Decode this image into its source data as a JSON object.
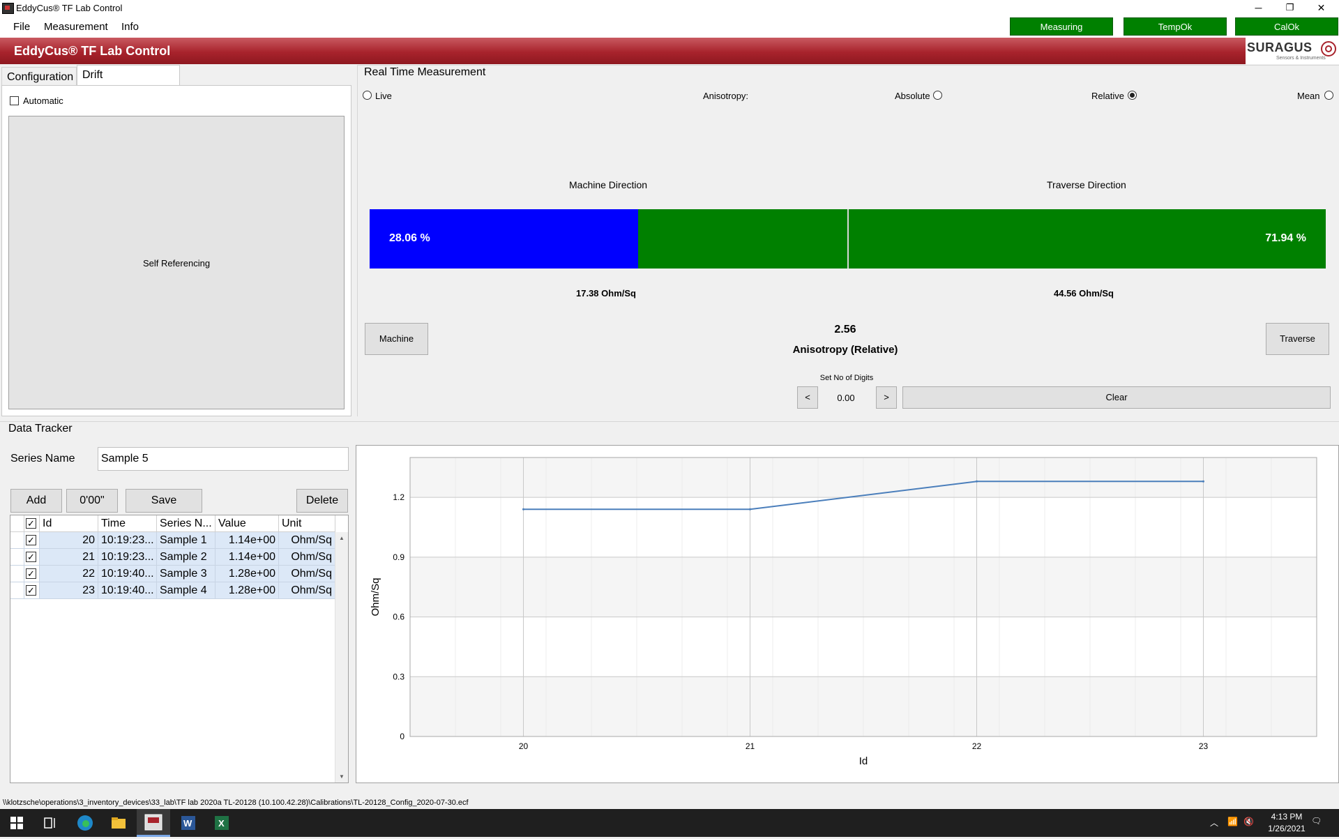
{
  "window": {
    "title": "EddyCus® TF Lab Control",
    "minimize": "─",
    "restore": "❐",
    "close": "✕"
  },
  "menu": {
    "items": [
      "File",
      "Measurement",
      "Info"
    ]
  },
  "status_buttons": {
    "measuring": "Measuring",
    "tempok": "TempOk",
    "calok": "CalOk",
    "color": "#008000"
  },
  "banner": {
    "title": "EddyCus® TF Lab Control",
    "logo_name": "SURAGUS",
    "logo_tagline": "Sensors & Instruments",
    "color": "#a8232c"
  },
  "tabs": {
    "configuration": "Configuration",
    "drift": "Drift Compensation"
  },
  "drift": {
    "automatic_label": "Automatic",
    "automatic_checked": false,
    "self_referencing": "Self Referencing"
  },
  "realtime": {
    "title": "Real Time Measurement",
    "live_label": "Live",
    "anisotropy_label": "Anisotropy:",
    "absolute_label": "Absolute",
    "relative_label": "Relative",
    "mean_label": "Mean",
    "selected_mode": "Relative",
    "machine_direction": "Machine Direction",
    "traverse_direction": "Traverse Direction",
    "machine_percent_label": "28.06 %",
    "traverse_percent_label": "71.94 %",
    "machine_fraction": 0.2806,
    "machine_value": "17.38 Ohm/Sq",
    "traverse_value": "44.56 Ohm/Sq",
    "machine_button": "Machine",
    "traverse_button": "Traverse",
    "anisotropy_value": "2.56",
    "anisotropy_caption": "Anisotropy (Relative)",
    "digits_label": "Set No of Digits",
    "digits_dec": "<",
    "digits_value": "0.00",
    "digits_inc": ">",
    "clear_button": "Clear",
    "bar_colors": {
      "machine": "#0000ff",
      "traverse": "#008000"
    }
  },
  "tracker": {
    "title": "Data Tracker",
    "series_label": "Series Name",
    "series_value": "Sample 5",
    "add_button": "Add",
    "timer_button": "0'00\"",
    "save_button": "Save",
    "delete_button": "Delete",
    "columns": [
      "Id",
      "Time",
      "Series N...",
      "Value",
      "Unit"
    ],
    "rows": [
      {
        "id": "20",
        "time": "10:19:23...",
        "series": "Sample 1",
        "value": "1.14e+00",
        "unit": "Ohm/Sq"
      },
      {
        "id": "21",
        "time": "10:19:23...",
        "series": "Sample 2",
        "value": "1.14e+00",
        "unit": "Ohm/Sq"
      },
      {
        "id": "22",
        "time": "10:19:40...",
        "series": "Sample 3",
        "value": "1.28e+00",
        "unit": "Ohm/Sq"
      },
      {
        "id": "23",
        "time": "10:19:40...",
        "series": "Sample 4",
        "value": "1.28e+00",
        "unit": "Ohm/Sq"
      }
    ]
  },
  "chart_data": {
    "type": "line",
    "x": [
      20,
      21,
      22,
      23
    ],
    "series": [
      {
        "values": [
          1.14,
          1.14,
          1.28,
          1.28
        ],
        "color": "#4a7ebb"
      }
    ],
    "xlabel": "Id",
    "ylabel": "Ohm/Sq",
    "xlim": [
      19.5,
      23.5
    ],
    "ylim": [
      0,
      1.4
    ],
    "xticks": [
      "20",
      "21",
      "22",
      "23"
    ],
    "yticks": [
      "0",
      "0.3",
      "0.6",
      "0.9",
      "1.2"
    ],
    "grid": true
  },
  "statusbar": {
    "path": "\\\\klotzsche\\operations\\3_inventory_devices\\33_lab\\TF lab 2020a TL-20128 (10.100.42.28)\\Calibrations\\TL-20128_Config_2020-07-30.ecf"
  },
  "taskbar": {
    "time": "4:13 PM",
    "date": "1/26/2021"
  }
}
